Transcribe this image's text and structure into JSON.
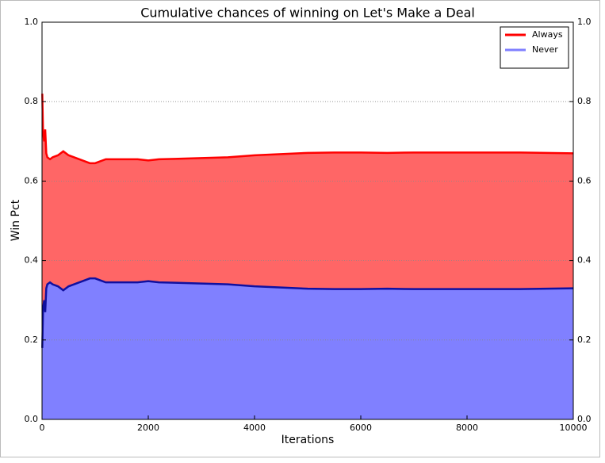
{
  "chart_data": {
    "type": "area",
    "title": "Cumulative chances of winning on Let's Make a Deal",
    "x_label": "Iterations",
    "y_label": "Win Pct",
    "x": [
      5,
      20,
      40,
      60,
      80,
      100,
      150,
      200,
      300,
      400,
      500,
      600,
      700,
      800,
      900,
      1000,
      1100,
      1200,
      1400,
      1600,
      1800,
      2000,
      2200,
      2500,
      3000,
      3500,
      4000,
      4500,
      5000,
      5500,
      6000,
      6500,
      7000,
      7500,
      8000,
      8500,
      9000,
      9500,
      10000
    ],
    "series": [
      {
        "name": "Always",
        "color": "#ff0000",
        "fill": "#ff6666",
        "values": [
          0.82,
          0.72,
          0.7,
          0.73,
          0.67,
          0.66,
          0.655,
          0.66,
          0.665,
          0.675,
          0.665,
          0.66,
          0.655,
          0.65,
          0.645,
          0.645,
          0.65,
          0.655,
          0.655,
          0.655,
          0.655,
          0.652,
          0.655,
          0.656,
          0.658,
          0.66,
          0.665,
          0.668,
          0.671,
          0.672,
          0.672,
          0.671,
          0.672,
          0.672,
          0.672,
          0.672,
          0.672,
          0.671,
          0.67
        ]
      },
      {
        "name": "Never",
        "color": "#1010a0",
        "legend_color": "#7f7fff",
        "fill": "#8080ff",
        "values": [
          0.18,
          0.28,
          0.3,
          0.27,
          0.33,
          0.34,
          0.345,
          0.34,
          0.335,
          0.325,
          0.335,
          0.34,
          0.345,
          0.35,
          0.355,
          0.355,
          0.35,
          0.345,
          0.345,
          0.345,
          0.345,
          0.348,
          0.345,
          0.344,
          0.342,
          0.34,
          0.335,
          0.332,
          0.329,
          0.328,
          0.328,
          0.329,
          0.328,
          0.328,
          0.328,
          0.328,
          0.328,
          0.329,
          0.33
        ]
      }
    ],
    "xlim": [
      0,
      10000
    ],
    "xticks": [
      0,
      2000,
      4000,
      6000,
      8000,
      10000
    ],
    "ylim": [
      0,
      1
    ],
    "yticks": [
      {
        "value": 0,
        "label": "0.0"
      },
      0.2,
      0.4,
      0.6,
      0.8,
      {
        "value": 1,
        "label": "1.0"
      }
    ],
    "y2lim": [
      0,
      1
    ],
    "y2ticks": [
      {
        "value": 0,
        "label": "0.0"
      },
      0.2,
      0.4,
      0.6,
      0.8,
      {
        "value": 1,
        "label": "1.0"
      }
    ],
    "grid": true,
    "legend": "upper right"
  }
}
